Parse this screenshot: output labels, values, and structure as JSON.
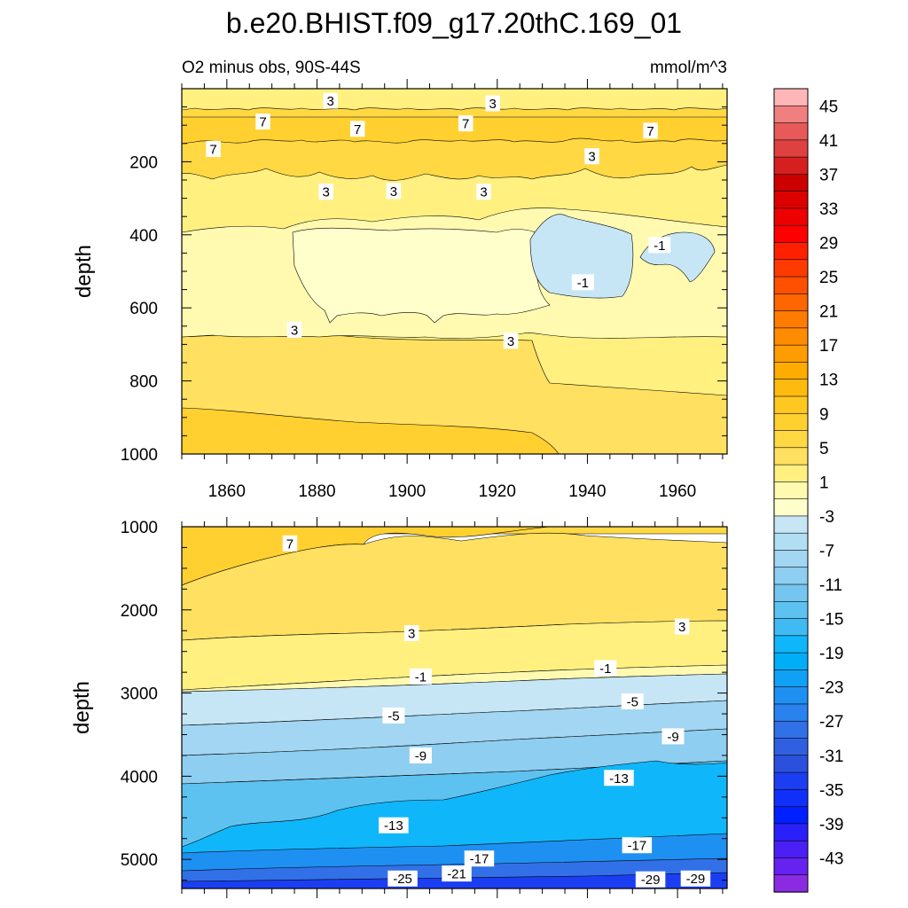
{
  "figure": {
    "title": "b.e20.BHIST.f09_g17.20thC.169_01",
    "left_subtitle": "O2 minus obs, 90S-44S",
    "right_subtitle": "mmol/m^3"
  },
  "chart_data": [
    {
      "type": "contour",
      "panel": "upper",
      "xlabel": "",
      "ylabel": "depth",
      "xlim": [
        1850,
        1971
      ],
      "ylim": [
        1000,
        0
      ],
      "x_ticks": [
        "1860",
        "1880",
        "1900",
        "1920",
        "1940",
        "1960"
      ],
      "y_ticks": [
        "200",
        "400",
        "600",
        "800",
        "1000"
      ],
      "contour_labels": [
        {
          "text": "3",
          "x": 1883,
          "depth": 33
        },
        {
          "text": "3",
          "x": 1919,
          "depth": 40
        },
        {
          "text": "7",
          "x": 1868,
          "depth": 90
        },
        {
          "text": "7",
          "x": 1889,
          "depth": 110
        },
        {
          "text": "7",
          "x": 1913,
          "depth": 95
        },
        {
          "text": "7",
          "x": 1954,
          "depth": 115
        },
        {
          "text": "7",
          "x": 1857,
          "depth": 165
        },
        {
          "text": "3",
          "x": 1941,
          "depth": 185
        },
        {
          "text": "3",
          "x": 1882,
          "depth": 282
        },
        {
          "text": "3",
          "x": 1897,
          "depth": 280
        },
        {
          "text": "3",
          "x": 1917,
          "depth": 282
        },
        {
          "text": "-1",
          "x": 1956,
          "depth": 428
        },
        {
          "text": "-1",
          "x": 1939,
          "depth": 530
        },
        {
          "text": "3",
          "x": 1875,
          "depth": 660
        },
        {
          "text": "3",
          "x": 1923,
          "depth": 690
        }
      ]
    },
    {
      "type": "contour",
      "panel": "lower",
      "xlabel": "",
      "ylabel": "depth",
      "xlim": [
        1850,
        1971
      ],
      "ylim": [
        5350,
        1000
      ],
      "x_ticks": [],
      "y_ticks": [
        "1000",
        "2000",
        "3000",
        "4000",
        "5000"
      ],
      "contour_labels": [
        {
          "text": "7",
          "x": 1874,
          "depth": 1200
        },
        {
          "text": "3",
          "x": 1901,
          "depth": 2280
        },
        {
          "text": "3",
          "x": 1961,
          "depth": 2200
        },
        {
          "text": "-1",
          "x": 1903,
          "depth": 2800
        },
        {
          "text": "-1",
          "x": 1944,
          "depth": 2700
        },
        {
          "text": "-5",
          "x": 1897,
          "depth": 3270
        },
        {
          "text": "-5",
          "x": 1950,
          "depth": 3100
        },
        {
          "text": "-9",
          "x": 1903,
          "depth": 3750
        },
        {
          "text": "-9",
          "x": 1959,
          "depth": 3520
        },
        {
          "text": "-13",
          "x": 1947,
          "depth": 4020
        },
        {
          "text": "-13",
          "x": 1897,
          "depth": 4590
        },
        {
          "text": "-17",
          "x": 1951,
          "depth": 4830
        },
        {
          "text": "-17",
          "x": 1916,
          "depth": 4990
        },
        {
          "text": "-25",
          "x": 1899,
          "depth": 5230
        },
        {
          "text": "-21",
          "x": 1911,
          "depth": 5170
        },
        {
          "text": "-29",
          "x": 1954,
          "depth": 5240
        },
        {
          "text": "-29",
          "x": 1964,
          "depth": 5230
        }
      ]
    },
    {
      "type": "colorbar",
      "levels": [
        -47,
        -45,
        -43,
        -41,
        -39,
        -37,
        -35,
        -33,
        -31,
        -29,
        -27,
        -25,
        -23,
        -21,
        -19,
        -17,
        -15,
        -13,
        -11,
        -9,
        -7,
        -5,
        -3,
        -1,
        1,
        3,
        5,
        7,
        9,
        11,
        13,
        15,
        17,
        19,
        21,
        23,
        25,
        27,
        29,
        31,
        33,
        35,
        37,
        39,
        41,
        43,
        45,
        47
      ],
      "tick_labels": [
        "45",
        "41",
        "37",
        "33",
        "29",
        "25",
        "21",
        "17",
        "13",
        "9",
        "5",
        "1",
        "-3",
        "-7",
        "-11",
        "-15",
        "-19",
        "-23",
        "-27",
        "-31",
        "-35",
        "-39",
        "-43"
      ],
      "colors": [
        "#ffb6b6",
        "#f08080",
        "#e85a5a",
        "#df4040",
        "#d62020",
        "#cc0000",
        "#dd0000",
        "#ee0000",
        "#ff0000",
        "#ff2000",
        "#ff3a00",
        "#ff5000",
        "#ff6600",
        "#ff7c00",
        "#ff8c00",
        "#ff9c00",
        "#ffab00",
        "#ffba10",
        "#ffc820",
        "#ffd030",
        "#ffd844",
        "#ffe060",
        "#fff080",
        "#fffab0",
        "#ffffcc",
        "#c6e6f6",
        "#b2def4",
        "#a2d6f2",
        "#8ecef0",
        "#74c6f0",
        "#5ec2f0",
        "#40baf2",
        "#10b6fa",
        "#00aef8",
        "#10a0f6",
        "#1e90f2",
        "#2a82ee",
        "#3270e8",
        "#3060e0",
        "#2c50de",
        "#1c3ef2",
        "#1030fa",
        "#0020ff",
        "#2a20fa",
        "#4a20f4",
        "#6622ee",
        "#8a2be2"
      ]
    }
  ]
}
